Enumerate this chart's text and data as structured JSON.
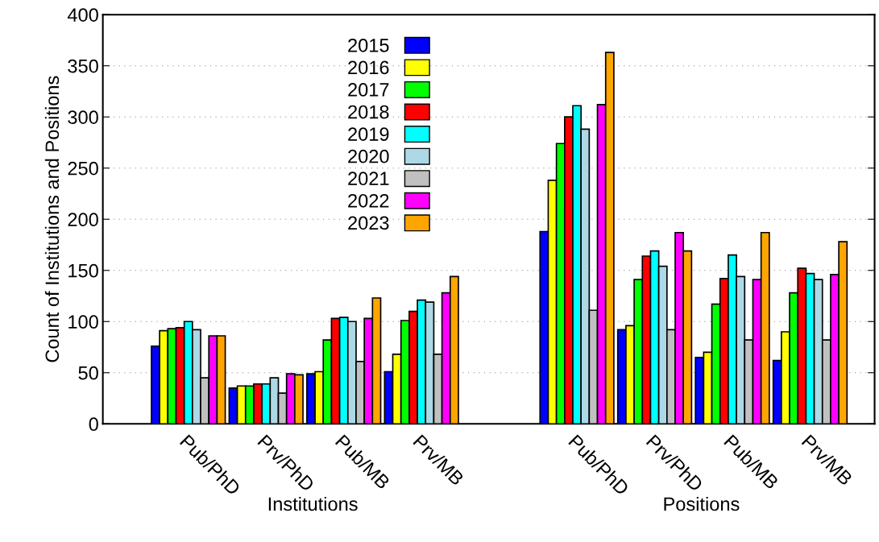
{
  "chart_data": {
    "type": "bar",
    "ylabel": "Count of Institutions and Positions",
    "categories": [
      "Pub/PhD",
      "Prv/PhD",
      "Pub/MB",
      "Prv/MB",
      null,
      "Pub/PhD",
      "Prv/PhD",
      "Pub/MB",
      "Prv/MB"
    ],
    "series": [
      {
        "name": "2015",
        "color": "#0000ff",
        "values": [
          76,
          35,
          49,
          51,
          null,
          188,
          92,
          65,
          62
        ]
      },
      {
        "name": "2016",
        "color": "#ffff00",
        "values": [
          91,
          37,
          51,
          68,
          null,
          238,
          96,
          70,
          90
        ]
      },
      {
        "name": "2017",
        "color": "#00ff00",
        "values": [
          93,
          37,
          82,
          101,
          null,
          274,
          141,
          117,
          128
        ]
      },
      {
        "name": "2018",
        "color": "#ff0000",
        "values": [
          94,
          39,
          103,
          110,
          null,
          300,
          164,
          142,
          152
        ]
      },
      {
        "name": "2019",
        "color": "#00ffff",
        "values": [
          100,
          39,
          104,
          121,
          null,
          311,
          169,
          165,
          147
        ]
      },
      {
        "name": "2020",
        "color": "#add8e6",
        "values": [
          92,
          45,
          100,
          119,
          null,
          288,
          154,
          144,
          141
        ]
      },
      {
        "name": "2021",
        "color": "#c0c0c0",
        "values": [
          45,
          30,
          61,
          68,
          null,
          111,
          92,
          82,
          82
        ]
      },
      {
        "name": "2022",
        "color": "#ff00ff",
        "values": [
          86,
          49,
          103,
          128,
          null,
          312,
          187,
          141,
          146
        ]
      },
      {
        "name": "2023",
        "color": "#ffa500",
        "values": [
          86,
          48,
          123,
          144,
          null,
          363,
          169,
          187,
          178
        ]
      }
    ],
    "ylim": [
      0,
      400
    ],
    "yticks": [
      0,
      50,
      100,
      150,
      200,
      250,
      300,
      350,
      400
    ],
    "grid": "y",
    "legend": "top",
    "annotations": [
      "Institutions",
      "Positions"
    ]
  }
}
